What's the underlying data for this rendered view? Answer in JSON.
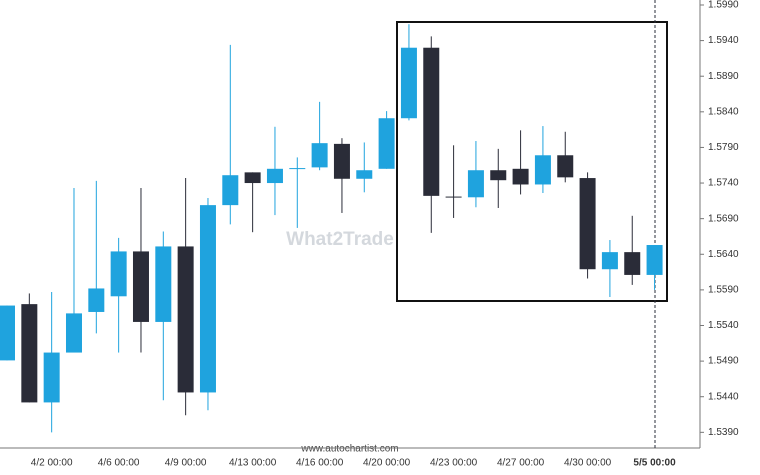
{
  "chart_data": {
    "type": "candlestick",
    "watermark": "What2Trade",
    "source": "www.autochartist.com",
    "categories": [
      null,
      null,
      "4/2 00:00",
      null,
      null,
      "4/6 00:00",
      null,
      null,
      "4/9 00:00",
      null,
      null,
      "4/13 00:00",
      null,
      null,
      "4/16 00:00",
      null,
      null,
      "4/20 00:00",
      null,
      null,
      "4/23 00:00",
      null,
      null,
      "4/27 00:00",
      null,
      null,
      "4/30 00:00",
      null,
      null,
      "5/5 00:00"
    ],
    "open": [
      1.5491,
      1.557,
      1.5432,
      1.5502,
      1.5559,
      1.5581,
      1.5644,
      1.5545,
      1.5651,
      1.5446,
      1.5709,
      1.5755,
      1.574,
      1.576,
      1.5762,
      1.5795,
      1.5746,
      1.576,
      1.5831,
      1.593,
      1.5721,
      1.572,
      1.5758,
      1.576,
      1.5738,
      1.5779,
      1.5747,
      1.5619,
      1.5643,
      1.5611
    ],
    "high": [
      1.5568,
      1.5585,
      1.5587,
      1.5733,
      1.5743,
      1.5663,
      1.5733,
      1.5672,
      1.5747,
      1.5719,
      1.5934,
      1.5755,
      1.5819,
      1.5776,
      1.5854,
      1.5803,
      1.5797,
      1.5841,
      1.5963,
      1.5946,
      1.5793,
      1.5799,
      1.5788,
      1.5814,
      1.582,
      1.5812,
      1.5755,
      1.566,
      1.5694,
      1.5653
    ],
    "low": [
      1.5491,
      1.5432,
      1.539,
      1.5502,
      1.5529,
      1.5502,
      1.5502,
      1.5435,
      1.5414,
      1.5421,
      1.5682,
      1.5671,
      1.5695,
      1.5677,
      1.5758,
      1.5698,
      1.5727,
      1.576,
      1.5828,
      1.567,
      1.5691,
      1.5706,
      1.5705,
      1.5724,
      1.5726,
      1.5741,
      1.5606,
      1.558,
      1.5597,
      1.559
    ],
    "close": [
      1.5568,
      1.5432,
      1.5502,
      1.5557,
      1.5592,
      1.5644,
      1.5545,
      1.5651,
      1.5446,
      1.5709,
      1.5751,
      1.574,
      1.576,
      1.5761,
      1.5796,
      1.5746,
      1.5758,
      1.5831,
      1.593,
      1.5722,
      1.572,
      1.5758,
      1.5744,
      1.5738,
      1.5779,
      1.5748,
      1.5619,
      1.5643,
      1.5611,
      1.5653
    ],
    "up_color": "#1fa3de",
    "down_color": "#2a2c38",
    "ylim": [
      1.5368,
      1.5997
    ],
    "yticks": [
      {
        "value": 1.599,
        "label": "1.5990"
      },
      {
        "value": 1.594,
        "label": "1.5940"
      },
      {
        "value": 1.589,
        "label": "1.5890"
      },
      {
        "value": 1.584,
        "label": "1.5840"
      },
      {
        "value": 1.579,
        "label": "1.5790"
      },
      {
        "value": 1.574,
        "label": "1.5740"
      },
      {
        "value": 1.569,
        "label": "1.5690"
      },
      {
        "value": 1.564,
        "label": "1.5640"
      },
      {
        "value": 1.559,
        "label": "1.5590"
      },
      {
        "value": 1.554,
        "label": "1.5540"
      },
      {
        "value": 1.549,
        "label": "1.5490"
      },
      {
        "value": 1.544,
        "label": "1.5440"
      },
      {
        "value": 1.539,
        "label": "1.5390"
      }
    ]
  }
}
